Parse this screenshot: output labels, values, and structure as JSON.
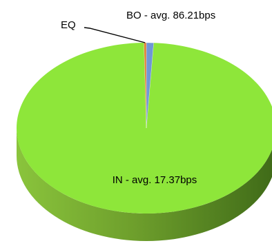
{
  "chart_data": {
    "type": "pie",
    "style": "3d",
    "legend": "none",
    "slices": [
      {
        "key": "IN",
        "label": "IN - avg. 17.37bps",
        "value": 98.8,
        "color": "#8ee63a"
      },
      {
        "key": "BO",
        "label": "BO - avg. 86.21bps",
        "value": 0.9,
        "color": "#6f97d6"
      },
      {
        "key": "EQ",
        "label": "EQ",
        "value": 0.3,
        "color": "#e0823a"
      }
    ]
  }
}
